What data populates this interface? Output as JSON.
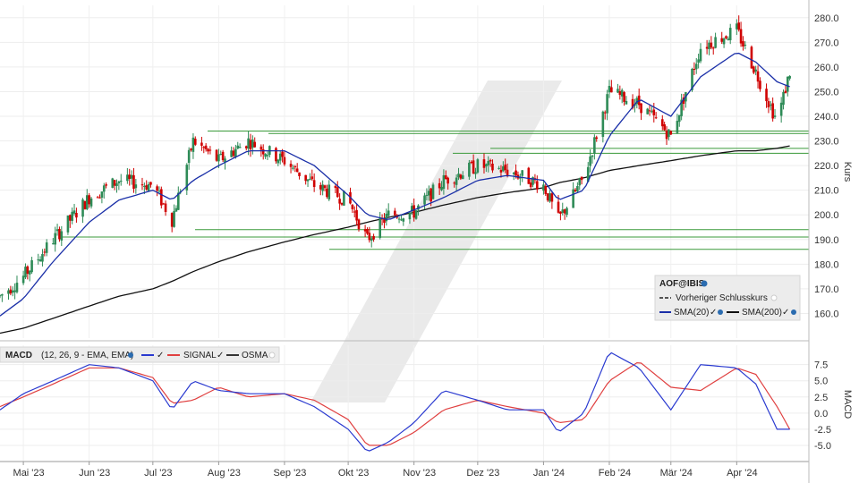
{
  "chart_data": [
    {
      "type": "candlestick",
      "panel": "price",
      "ylabel": "Kurs",
      "ylim": [
        150,
        285
      ],
      "yticks": [
        "160.0",
        "170.0",
        "180.0",
        "190.0",
        "200.0",
        "210.0",
        "220.0",
        "230.0",
        "240.0",
        "250.0",
        "260.0",
        "270.0",
        "280.0"
      ],
      "x_dates": [
        "2023-04-20",
        "2023-05-01",
        "2023-05-15",
        "2023-06-01",
        "2023-06-15",
        "2023-07-01",
        "2023-07-10",
        "2023-07-20",
        "2023-08-01",
        "2023-08-15",
        "2023-09-01",
        "2023-09-15",
        "2023-10-01",
        "2023-10-10",
        "2023-10-20",
        "2023-11-01",
        "2023-11-15",
        "2023-12-01",
        "2023-12-15",
        "2024-01-01",
        "2024-01-08",
        "2024-01-20",
        "2024-02-01",
        "2024-02-15",
        "2024-03-01",
        "2024-03-15",
        "2024-04-01",
        "2024-04-10",
        "2024-04-20",
        "2024-04-26"
      ],
      "close_path": [
        167,
        175,
        190,
        207,
        214,
        212,
        198,
        230,
        222,
        230,
        222,
        212,
        206,
        190,
        200,
        201,
        214,
        220,
        218,
        212,
        198,
        215,
        250,
        245,
        232,
        268,
        275,
        258,
        238,
        258
      ],
      "sma20_path": [
        159,
        166,
        181,
        197,
        206,
        210,
        206,
        214,
        220,
        226,
        226,
        220,
        208,
        200,
        198,
        202,
        207,
        214,
        216,
        214,
        206,
        210,
        232,
        247,
        240,
        256,
        266,
        262,
        254,
        252
      ],
      "sma200_path": [
        152,
        154,
        158,
        163,
        167,
        170,
        173,
        177,
        181,
        185,
        189,
        192,
        195,
        197,
        199,
        201,
        204,
        207,
        209,
        211,
        213,
        215,
        218,
        220,
        222,
        224,
        226,
        226,
        227,
        228
      ],
      "hlines": [
        234,
        233,
        227,
        225,
        194,
        191,
        186
      ],
      "legend": {
        "symbol": "AOF@IBIS",
        "prev_close": "Vorheriger Schlusskurs",
        "sma20": "SMA(20)",
        "sma200": "SMA(200)"
      },
      "colors": {
        "up": "#2e8b57",
        "down": "#d00000",
        "sma20": "#1a2fa8",
        "sma200": "#111111",
        "hline": "#3a9a3a"
      }
    },
    {
      "type": "line",
      "panel": "macd",
      "ylabel": "MACD",
      "ylim": [
        -7.5,
        10.5
      ],
      "yticks": [
        "-5.0",
        "-2.5",
        "0.0",
        "2.5",
        "5.0",
        "7.5"
      ],
      "legend": {
        "label": "MACD",
        "params": "(12, 26, 9 - EMA, EMA)",
        "signal": "SIGNAL",
        "osma": "OSMA"
      },
      "x_dates": [
        "2023-04-20",
        "2023-05-01",
        "2023-05-15",
        "2023-06-01",
        "2023-06-15",
        "2023-07-01",
        "2023-07-10",
        "2023-07-20",
        "2023-08-01",
        "2023-08-15",
        "2023-09-01",
        "2023-09-15",
        "2023-10-01",
        "2023-10-10",
        "2023-10-20",
        "2023-11-01",
        "2023-11-15",
        "2023-12-01",
        "2023-12-15",
        "2024-01-01",
        "2024-01-08",
        "2024-01-20",
        "2024-02-01",
        "2024-02-15",
        "2024-03-01",
        "2024-03-15",
        "2024-04-01",
        "2024-04-10",
        "2024-04-20",
        "2024-04-26"
      ],
      "series": [
        {
          "name": "MACD",
          "values": [
            0.5,
            3.0,
            5.0,
            7.5,
            7.0,
            5.0,
            0.5,
            5.0,
            3.5,
            3.0,
            3.0,
            1.0,
            -2.5,
            -6.0,
            -4.5,
            -1.5,
            3.5,
            2.0,
            0.5,
            0.5,
            -3.0,
            0.0,
            9.5,
            7.0,
            0.5,
            7.5,
            7.0,
            4.5,
            -2.5,
            -2.5
          ]
        },
        {
          "name": "SIGNAL",
          "values": [
            1.0,
            2.5,
            4.5,
            7.0,
            7.0,
            5.5,
            1.5,
            2.0,
            4.0,
            2.5,
            3.0,
            2.0,
            -1.0,
            -5.0,
            -5.0,
            -3.0,
            0.5,
            2.0,
            1.0,
            0.0,
            -1.5,
            -1.0,
            5.0,
            8.0,
            4.0,
            3.5,
            7.0,
            6.0,
            1.0,
            -2.5
          ]
        }
      ],
      "colors": {
        "macd": "#2a3ad0",
        "signal": "#e04040"
      }
    }
  ],
  "x_axis": {
    "labels": [
      "Mai '23",
      "Jun '23",
      "Jul '23",
      "Aug '23",
      "Sep '23",
      "Okt '23",
      "Nov '23",
      "Dez '23",
      "Jan '24",
      "Feb '24",
      "Mär '24",
      "Apr '24"
    ]
  }
}
